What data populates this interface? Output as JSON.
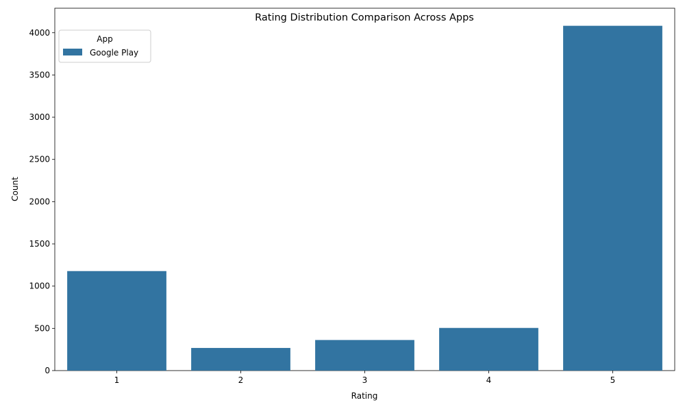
{
  "chart_data": {
    "type": "bar",
    "title": "Rating Distribution Comparison Across Apps",
    "xlabel": "Rating",
    "ylabel": "Count",
    "categories": [
      "1",
      "2",
      "3",
      "4",
      "5"
    ],
    "series": [
      {
        "name": "Google Play",
        "values": [
          1178,
          268,
          362,
          505,
          4082
        ],
        "color": "#3274a1"
      }
    ],
    "ylim": [
      0,
      4290
    ],
    "yticks": [
      0,
      500,
      1000,
      1500,
      2000,
      2500,
      3000,
      3500,
      4000
    ],
    "grid": false,
    "legend": {
      "title": "App",
      "placement": "top-left"
    }
  }
}
